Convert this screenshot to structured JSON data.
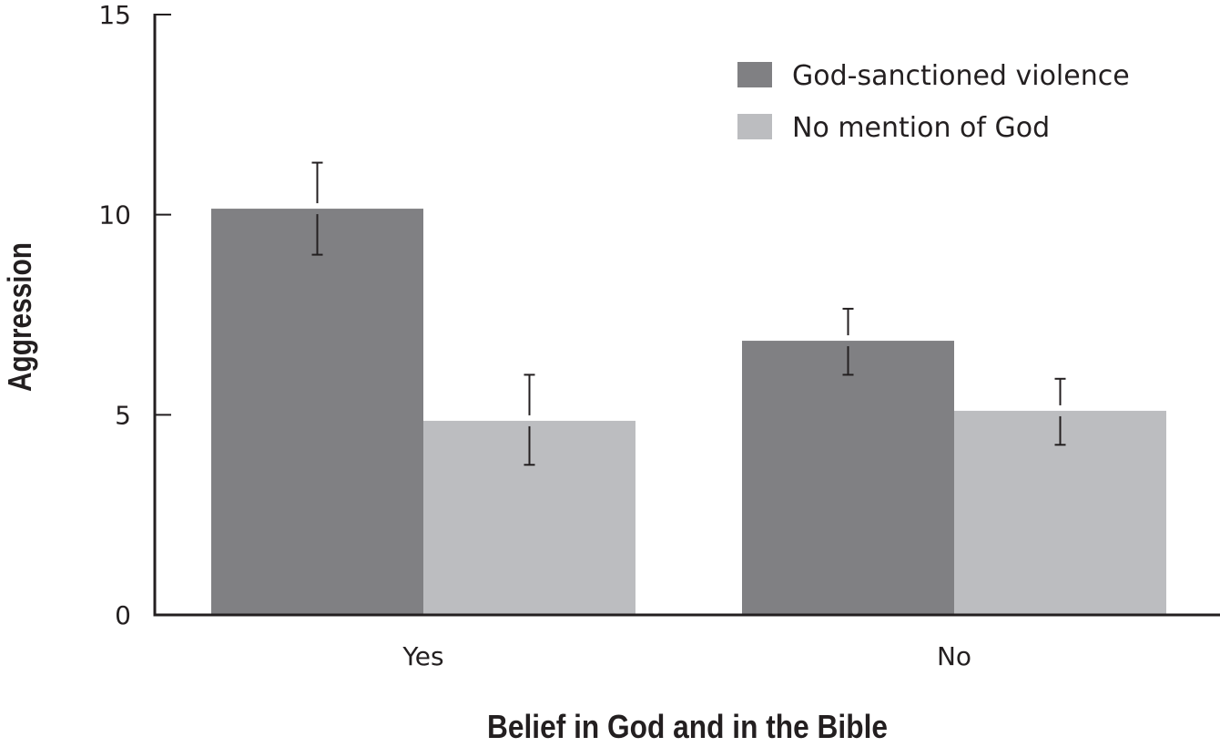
{
  "chart_data": {
    "type": "bar",
    "title": "",
    "xlabel": "Belief in God and in the Bible",
    "ylabel": "Aggression",
    "categories": [
      "Yes",
      "No"
    ],
    "series": [
      {
        "name": "God-sanctioned violence",
        "color": "#808083",
        "values": [
          10.15,
          6.85
        ],
        "error_low": [
          9.0,
          6.0
        ],
        "error_high": [
          11.3,
          7.65
        ]
      },
      {
        "name": "No mention of God",
        "color": "#bcbdc0",
        "values": [
          4.85,
          5.1
        ],
        "error_low": [
          3.75,
          4.25
        ],
        "error_high": [
          6.0,
          5.9
        ]
      }
    ],
    "ylim": [
      0,
      15
    ],
    "yticks": [
      "0",
      "5",
      "10",
      "15"
    ],
    "grid": false,
    "legend_position": "top-right"
  }
}
